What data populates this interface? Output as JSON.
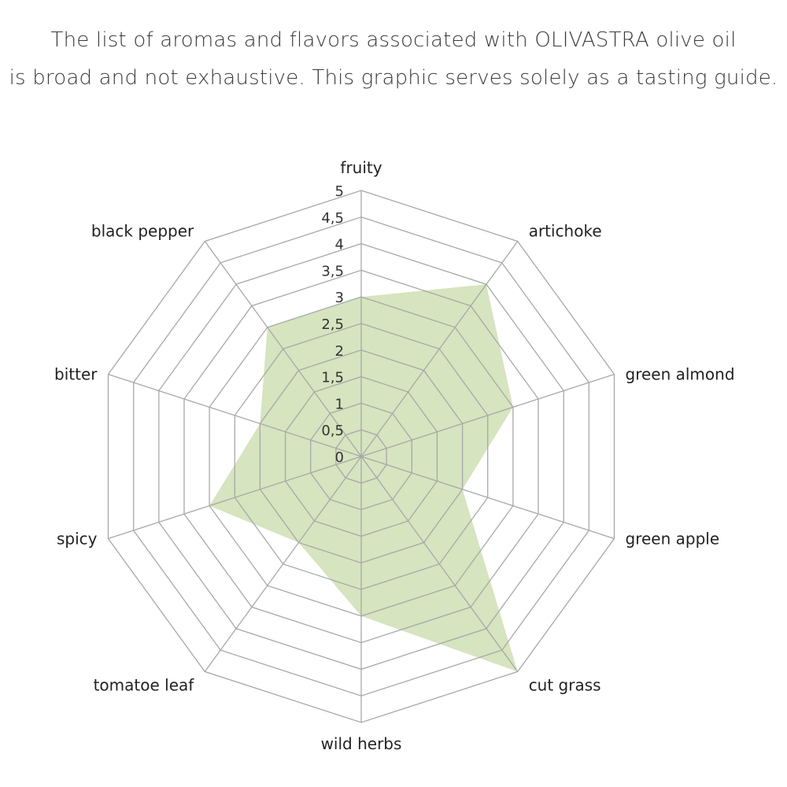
{
  "title": {
    "line1": "The list of aromas and flavors associated with OLIVASTRA olive oil",
    "line2": "is broad and not exhaustive. This graphic serves solely as a tasting guide."
  },
  "colors": {
    "fill": "#d6e4bf",
    "grid": "#a8a8a8"
  },
  "chart_data": {
    "type": "radar",
    "categories": [
      "fruity",
      "artichoke",
      "green almond",
      "green apple",
      "cut grass",
      "wild herbs",
      "tomatoe leaf",
      "spicy",
      "bitter",
      "black pepper"
    ],
    "values": [
      3,
      4,
      3,
      2,
      5,
      3,
      2,
      3,
      2,
      3
    ],
    "range": [
      0,
      5
    ],
    "tick_step": 0.5,
    "tick_labels": [
      "0",
      "0,5",
      "1",
      "1,5",
      "2",
      "2,5",
      "3",
      "3,5",
      "4",
      "4,5",
      "5"
    ],
    "grid": true,
    "legend": "none"
  }
}
